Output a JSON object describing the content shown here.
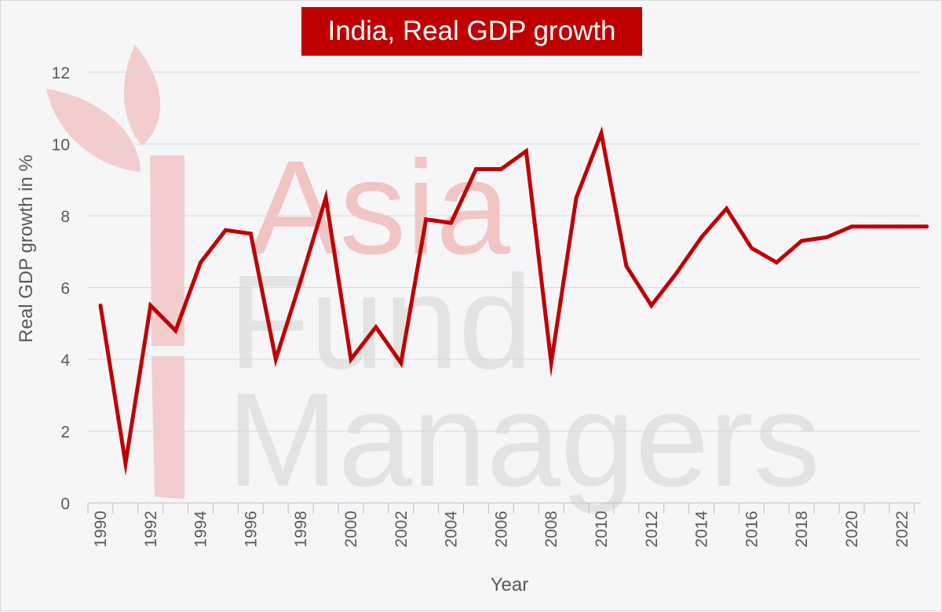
{
  "chart_data": {
    "type": "line",
    "title": "India, Real GDP growth",
    "xlabel": "Year",
    "ylabel": "Real GDP growth in %",
    "ylim": [
      0,
      12
    ],
    "yticks": [
      "0",
      "2",
      "4",
      "6",
      "8",
      "10",
      "12"
    ],
    "xlim": [
      1990,
      2023
    ],
    "xticks": [
      "1990",
      "1992",
      "1994",
      "1996",
      "1998",
      "2000",
      "2002",
      "2004",
      "2006",
      "2008",
      "2010",
      "2012",
      "2014",
      "2016",
      "2018",
      "2020",
      "2022"
    ],
    "grid": true,
    "legend": "none",
    "series": [
      {
        "color": "#c00000",
        "x": [
          1990,
          1991,
          1992,
          1993,
          1994,
          1995,
          1996,
          1997,
          1998,
          1999,
          2000,
          2001,
          2002,
          2003,
          2004,
          2005,
          2006,
          2007,
          2008,
          2009,
          2010,
          2011,
          2012,
          2013,
          2014,
          2015,
          2016,
          2017,
          2018,
          2019,
          2020,
          2021,
          2022,
          2023
        ],
        "values": [
          5.5,
          1.1,
          5.5,
          4.8,
          6.7,
          7.6,
          7.5,
          4.0,
          6.2,
          8.5,
          4.0,
          4.9,
          3.9,
          7.9,
          7.8,
          9.3,
          9.3,
          9.8,
          3.9,
          8.5,
          10.3,
          6.6,
          5.5,
          6.4,
          7.4,
          8.2,
          7.1,
          6.7,
          7.3,
          7.4,
          7.7,
          7.7,
          7.7,
          7.7
        ]
      }
    ]
  },
  "watermark": {
    "lines": [
      "Asia",
      "Fund",
      "Managers"
    ],
    "color_line1": "#f2c4c4",
    "color_other": "#e3e3e3"
  },
  "colors": {
    "title_bg": "#c00000",
    "line": "#c00000",
    "gridline": "#d9d9d9",
    "text": "#595959"
  }
}
